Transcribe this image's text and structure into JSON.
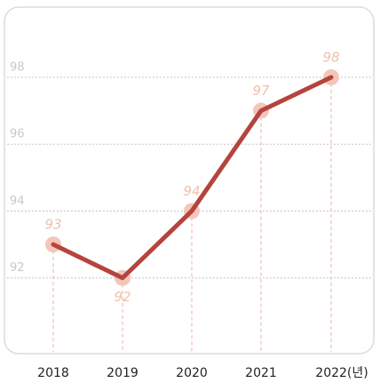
{
  "chart_data": {
    "type": "line",
    "categories": [
      "2018",
      "2019",
      "2020",
      "2021",
      "2022(년)"
    ],
    "values": [
      93,
      92,
      94,
      97,
      98
    ],
    "color": "#b5443e",
    "marker_color": "#f3c6b9",
    "ylim": [
      90,
      100
    ],
    "yticks": [
      92,
      94,
      96,
      98
    ],
    "grid": true
  }
}
